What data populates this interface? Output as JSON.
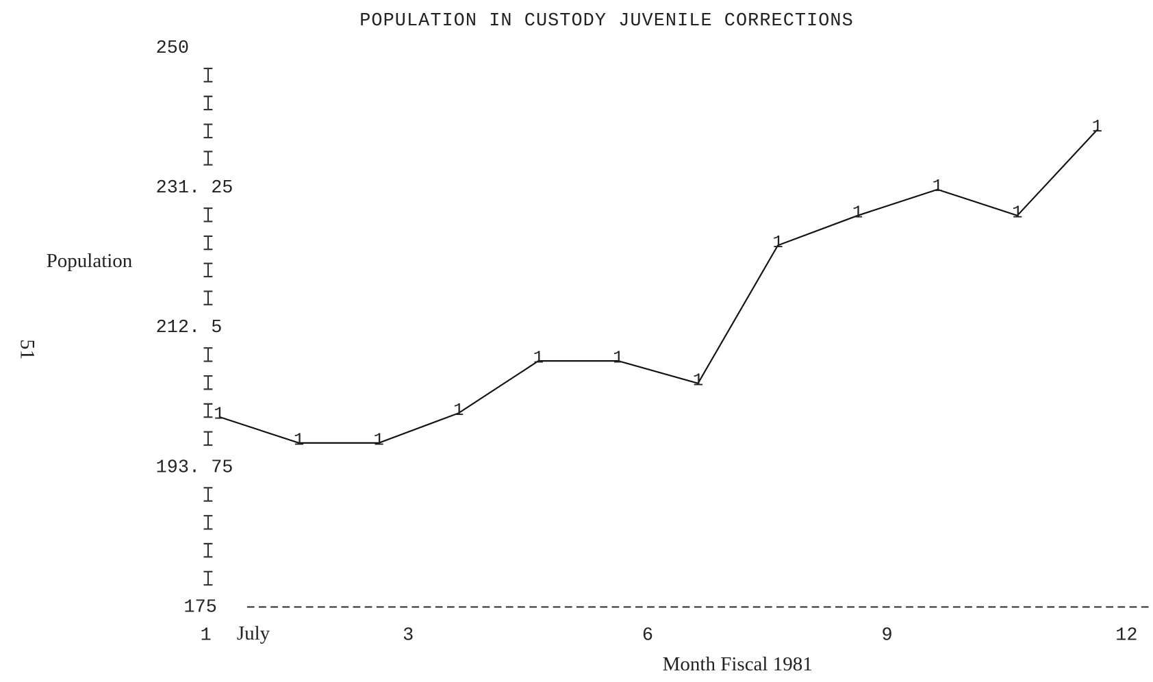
{
  "chart_data": {
    "type": "line",
    "title": "POPULATION IN CUSTODY JUVENILE CORRECTIONS",
    "y_label": "Population",
    "x_label": "Month Fiscal 1981",
    "x_annotation": "July",
    "page_number": "51",
    "x": [
      1,
      2,
      3,
      4,
      5,
      6,
      7,
      8,
      9,
      10,
      11,
      12
    ],
    "series": [
      {
        "name": "1",
        "color": "#111111",
        "values": [
          200.5,
          197,
          197,
          201,
          208,
          208,
          205,
          223.5,
          227.5,
          231,
          227.5,
          239
        ]
      }
    ],
    "xlim": [
      1,
      12
    ],
    "xticks": [
      1,
      3,
      6,
      9,
      12
    ],
    "ylim": [
      175,
      250
    ],
    "yticks": [
      175,
      {
        "value": 193.75,
        "label": "193. 75"
      },
      {
        "value": 212.5,
        "label": "212. 5"
      },
      {
        "value": 231.25,
        "label": "231. 25"
      },
      250
    ]
  }
}
